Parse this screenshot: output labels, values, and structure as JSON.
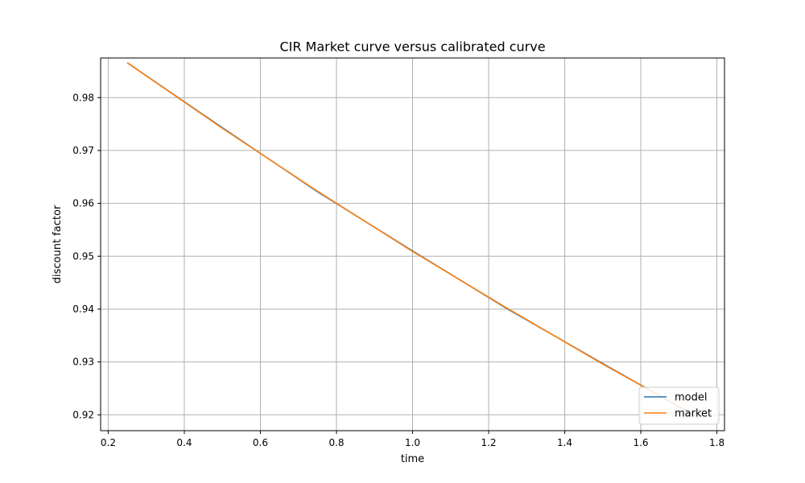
{
  "chart_data": {
    "type": "line",
    "title": "CIR Market curve versus calibrated curve",
    "xlabel": "time",
    "ylabel": "discount factor",
    "xlim": [
      0.18,
      1.82
    ],
    "ylim": [
      0.917,
      0.9875
    ],
    "xticks": [
      0.2,
      0.4,
      0.6,
      0.8,
      1.0,
      1.2,
      1.4,
      1.6,
      1.8
    ],
    "xtick_labels": [
      "0.2",
      "0.4",
      "0.6",
      "0.8",
      "1.0",
      "1.2",
      "1.4",
      "1.6",
      "1.8"
    ],
    "yticks": [
      0.92,
      0.93,
      0.94,
      0.95,
      0.96,
      0.97,
      0.98
    ],
    "ytick_labels": [
      "0.92",
      "0.93",
      "0.94",
      "0.95",
      "0.96",
      "0.97",
      "0.98"
    ],
    "grid": true,
    "legend": "lower-right",
    "x": [
      0.25,
      0.5,
      0.75,
      1.0,
      1.25,
      1.5,
      1.75
    ],
    "series": [
      {
        "name": "model",
        "color": "#1f77b4",
        "values": [
          0.9866,
          0.9743,
          0.9622,
          0.951,
          0.94,
          0.9297,
          0.9195
        ]
      },
      {
        "name": "market",
        "color": "#ff7f0e",
        "values": [
          0.9866,
          0.9742,
          0.9623,
          0.9509,
          0.9401,
          0.9296,
          0.9196
        ]
      }
    ]
  }
}
